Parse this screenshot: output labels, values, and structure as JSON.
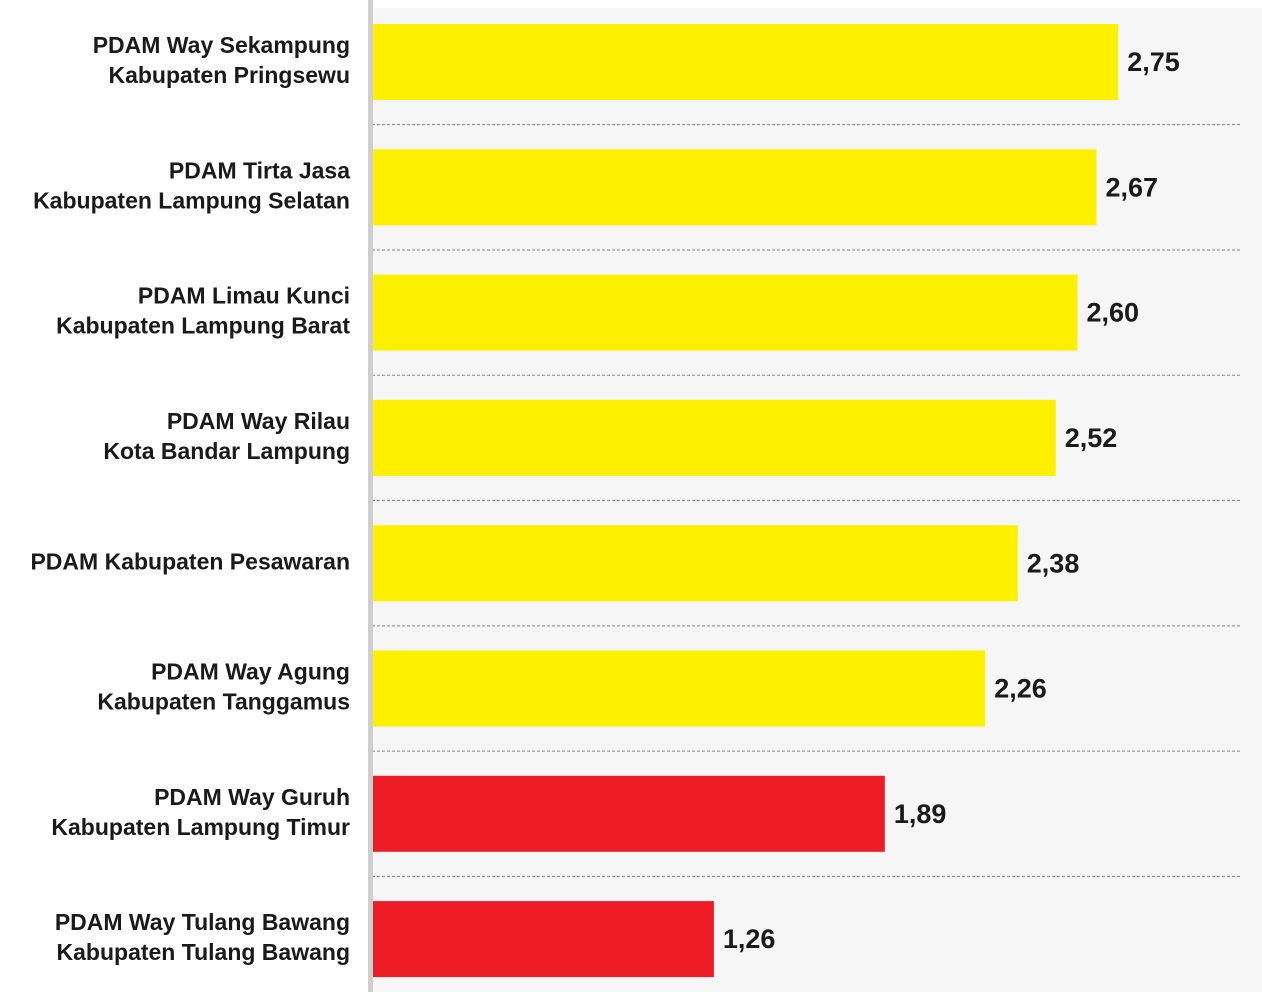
{
  "chart_data": {
    "type": "bar",
    "orientation": "horizontal",
    "categories": [
      [
        "PDAM Way Sekampung",
        "Kabupaten Pringsewu"
      ],
      [
        "PDAM Tirta Jasa",
        "Kabupaten Lampung Selatan"
      ],
      [
        "PDAM Limau Kunci",
        "Kabupaten Lampung Barat"
      ],
      [
        "PDAM Way Rilau",
        "Kota Bandar Lampung"
      ],
      [
        "PDAM Kabupaten Pesawaran"
      ],
      [
        "PDAM Way Agung",
        "Kabupaten Tanggamus"
      ],
      [
        "PDAM Way Guruh",
        "Kabupaten Lampung Timur"
      ],
      [
        "PDAM Way Tulang Bawang",
        "Kabupaten Tulang Bawang"
      ]
    ],
    "values": [
      2.75,
      2.67,
      2.6,
      2.52,
      2.38,
      2.26,
      1.89,
      1.26
    ],
    "value_labels": [
      "2,75",
      "2,67",
      "2,60",
      "2,52",
      "2,38",
      "2,26",
      "1,89",
      "1,26"
    ],
    "colors": [
      "#fff000",
      "#fff000",
      "#fff000",
      "#fff000",
      "#fff000",
      "#fff000",
      "#ee1c24",
      "#ee1c24"
    ],
    "xlim": [
      0,
      3.28
    ]
  }
}
